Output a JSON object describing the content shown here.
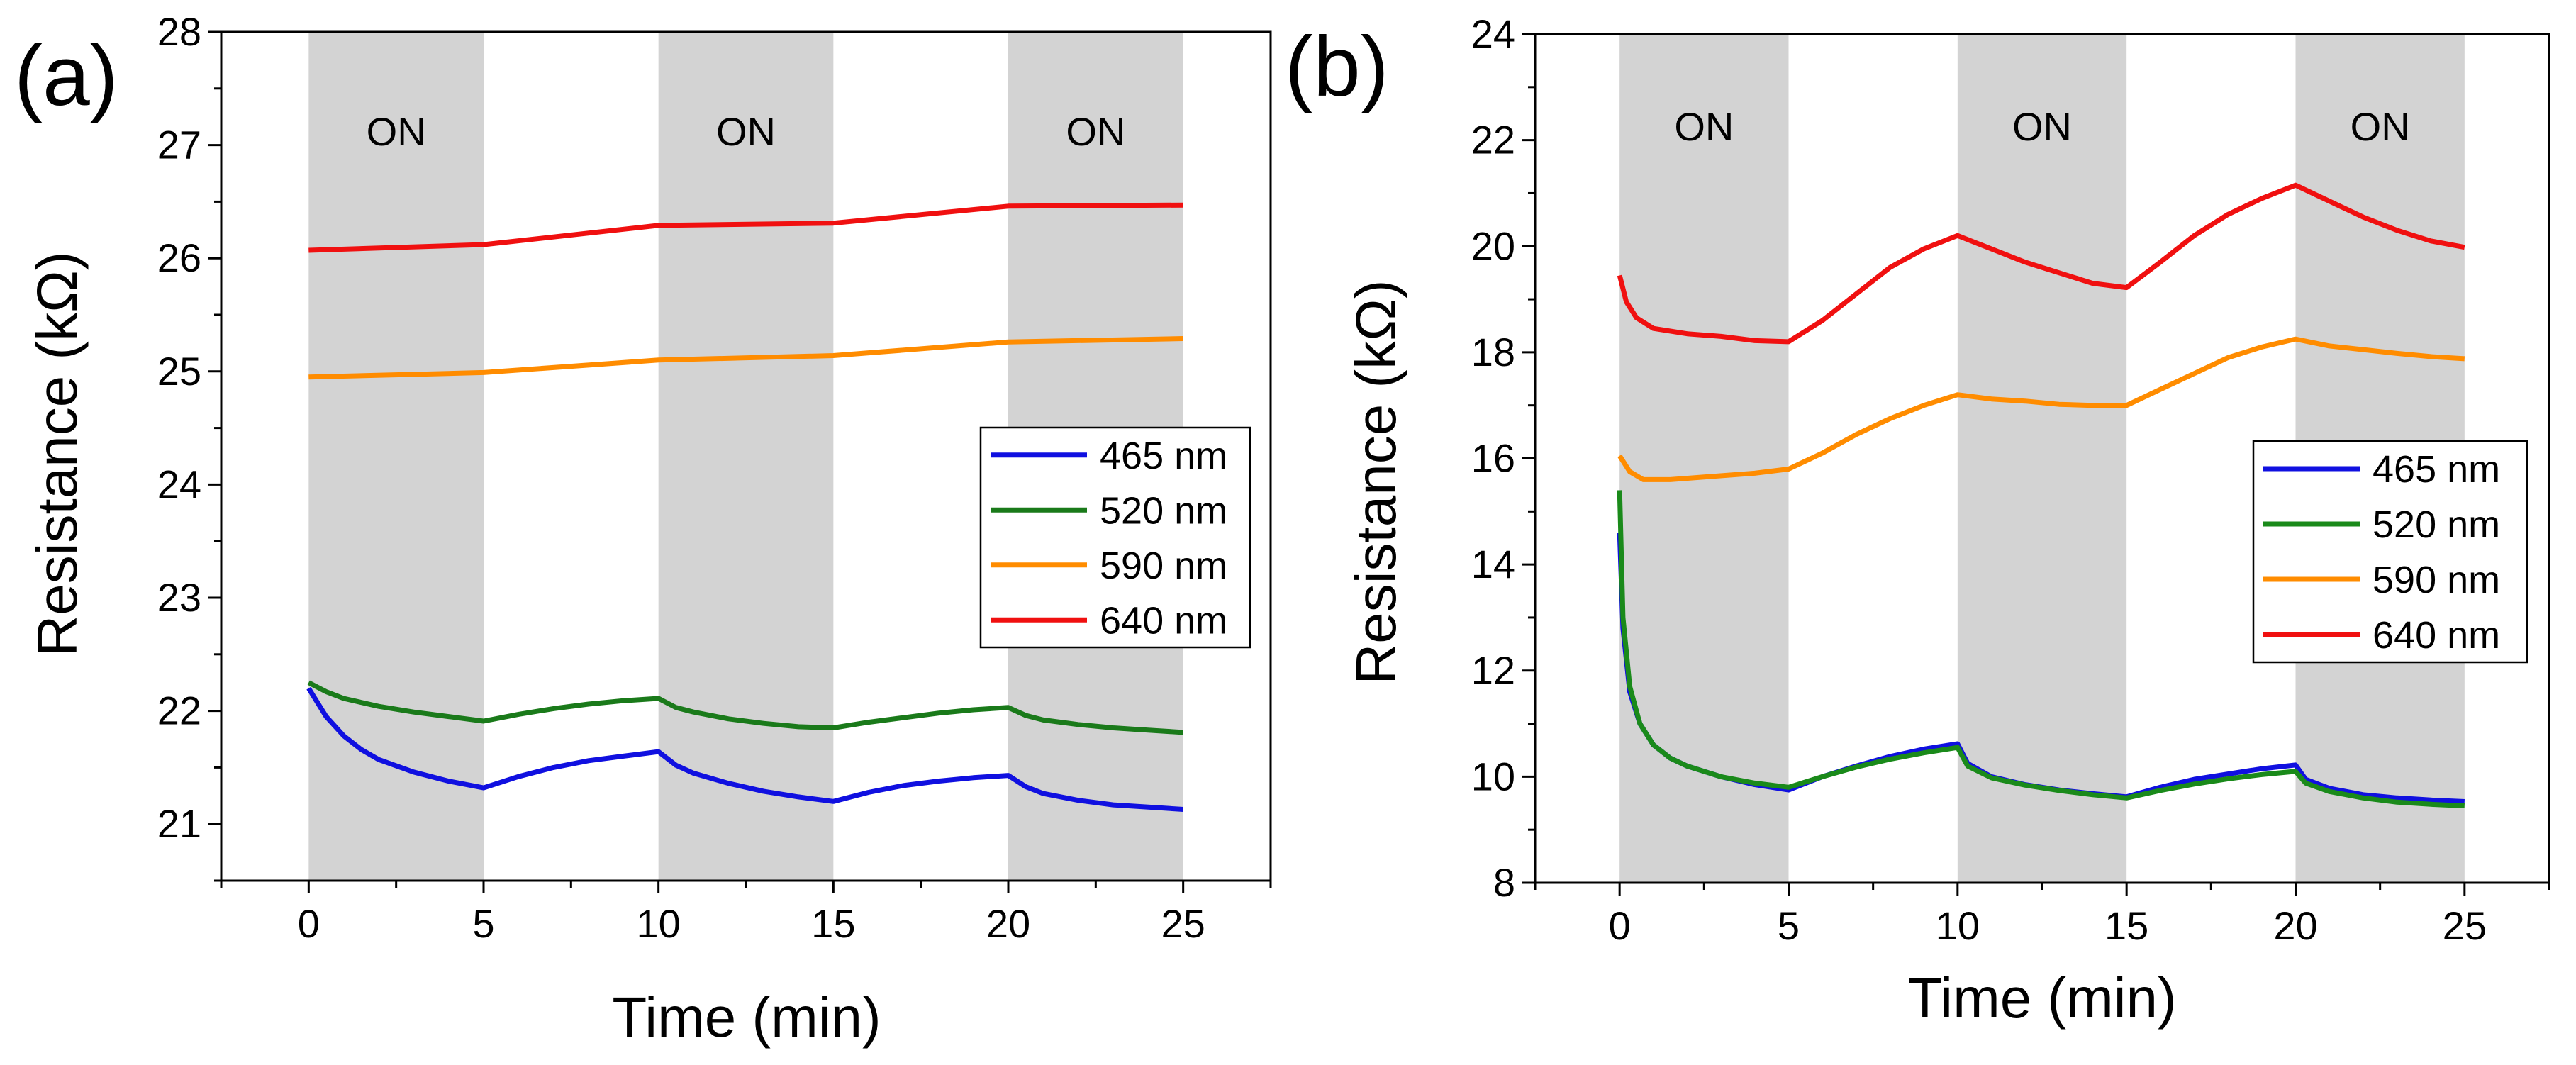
{
  "chart_data": [
    {
      "panel": "a",
      "panel_label": "(a)",
      "type": "line",
      "xlabel": "Time (min)",
      "ylabel": "Resistance (kΩ)",
      "xlim": [
        -2.5,
        27.5
      ],
      "ylim": [
        20.5,
        28
      ],
      "xticks": [
        0,
        5,
        10,
        15,
        20,
        25
      ],
      "yticks": [
        21,
        22,
        23,
        24,
        25,
        26,
        27,
        28
      ],
      "shaded_regions": [
        {
          "x0": 0,
          "x1": 5,
          "label": "ON"
        },
        {
          "x0": 10,
          "x1": 15,
          "label": "ON"
        },
        {
          "x0": 20,
          "x1": 25,
          "label": "ON"
        }
      ],
      "legend_position": "center-right",
      "series": [
        {
          "name": "465 nm",
          "color": "#1010e0",
          "x": [
            0,
            0.5,
            1,
            1.5,
            2,
            3,
            4,
            5,
            6,
            7,
            8,
            9,
            10,
            10.5,
            11,
            12,
            13,
            14,
            15,
            16,
            17,
            18,
            19,
            20,
            20.5,
            21,
            22,
            23,
            24,
            25
          ],
          "y": [
            22.2,
            21.95,
            21.78,
            21.66,
            21.57,
            21.46,
            21.38,
            21.32,
            21.42,
            21.5,
            21.56,
            21.6,
            21.64,
            21.52,
            21.45,
            21.36,
            21.29,
            21.24,
            21.2,
            21.28,
            21.34,
            21.38,
            21.41,
            21.43,
            21.33,
            21.27,
            21.21,
            21.17,
            21.15,
            21.13
          ]
        },
        {
          "name": "520 nm",
          "color": "#1a7a1a",
          "x": [
            0,
            0.5,
            1,
            2,
            3,
            4,
            5,
            6,
            7,
            8,
            9,
            10,
            10.5,
            11,
            12,
            13,
            14,
            15,
            16,
            17,
            18,
            19,
            20,
            20.5,
            21,
            22,
            23,
            24,
            25
          ],
          "y": [
            22.25,
            22.17,
            22.11,
            22.04,
            21.99,
            21.95,
            21.91,
            21.97,
            22.02,
            22.06,
            22.09,
            22.11,
            22.03,
            21.99,
            21.93,
            21.89,
            21.86,
            21.85,
            21.9,
            21.94,
            21.98,
            22.01,
            22.03,
            21.96,
            21.92,
            21.88,
            21.85,
            21.83,
            21.81
          ]
        },
        {
          "name": "590 nm",
          "color": "#ff8c00",
          "x": [
            0,
            5,
            10,
            15,
            20,
            25
          ],
          "y": [
            24.95,
            24.99,
            25.1,
            25.14,
            25.26,
            25.29
          ]
        },
        {
          "name": "640 nm",
          "color": "#f01010",
          "x": [
            0,
            5,
            10,
            15,
            20,
            25
          ],
          "y": [
            26.07,
            26.12,
            26.29,
            26.31,
            26.46,
            26.47
          ]
        }
      ]
    },
    {
      "panel": "b",
      "panel_label": "(b)",
      "type": "line",
      "xlabel": "Time (min)",
      "ylabel": "Resistance (kΩ)",
      "xlim": [
        -2.5,
        27.5
      ],
      "ylim": [
        8,
        24
      ],
      "xticks": [
        0,
        5,
        10,
        15,
        20,
        25
      ],
      "yticks": [
        8,
        10,
        12,
        14,
        16,
        18,
        20,
        22,
        24
      ],
      "shaded_regions": [
        {
          "x0": 0,
          "x1": 5,
          "label": "ON"
        },
        {
          "x0": 10,
          "x1": 15,
          "label": "ON"
        },
        {
          "x0": 20,
          "x1": 25,
          "label": "ON"
        }
      ],
      "legend_position": "center-right",
      "series": [
        {
          "name": "465 nm",
          "color": "#1010e0",
          "x": [
            0,
            0.1,
            0.3,
            0.6,
            1,
            1.5,
            2,
            3,
            4,
            5,
            6,
            7,
            8,
            9,
            10,
            10.3,
            11,
            12,
            13,
            14,
            15,
            16,
            17,
            18,
            19,
            20,
            20.3,
            21,
            22,
            23,
            24,
            25
          ],
          "y": [
            14.6,
            12.8,
            11.6,
            11.0,
            10.6,
            10.35,
            10.2,
            10.0,
            9.85,
            9.75,
            10.0,
            10.2,
            10.38,
            10.52,
            10.62,
            10.25,
            10.0,
            9.85,
            9.75,
            9.68,
            9.62,
            9.8,
            9.95,
            10.05,
            10.15,
            10.22,
            9.95,
            9.78,
            9.66,
            9.6,
            9.56,
            9.53
          ]
        },
        {
          "name": "520 nm",
          "color": "#1a8a1a",
          "x": [
            0,
            0.1,
            0.3,
            0.6,
            1,
            1.5,
            2,
            3,
            4,
            5,
            6,
            7,
            8,
            9,
            10,
            10.3,
            11,
            12,
            13,
            14,
            15,
            16,
            17,
            18,
            19,
            20,
            20.3,
            21,
            22,
            23,
            24,
            25
          ],
          "y": [
            15.4,
            13.0,
            11.7,
            11.0,
            10.6,
            10.35,
            10.2,
            10.0,
            9.88,
            9.8,
            10.0,
            10.18,
            10.33,
            10.45,
            10.55,
            10.2,
            9.98,
            9.84,
            9.74,
            9.66,
            9.6,
            9.74,
            9.86,
            9.96,
            10.04,
            10.1,
            9.88,
            9.72,
            9.6,
            9.52,
            9.48,
            9.45
          ]
        },
        {
          "name": "590 nm",
          "color": "#ff8c00",
          "x": [
            0,
            0.3,
            0.7,
            1.5,
            2.5,
            4,
            5,
            6,
            7,
            8,
            9,
            10,
            11,
            12,
            13,
            14,
            15,
            16,
            17,
            18,
            19,
            20,
            21,
            22,
            23,
            24,
            25
          ],
          "y": [
            16.05,
            15.75,
            15.6,
            15.6,
            15.65,
            15.72,
            15.8,
            16.1,
            16.45,
            16.75,
            17.0,
            17.2,
            17.12,
            17.08,
            17.02,
            17.0,
            17.0,
            17.3,
            17.6,
            17.9,
            18.1,
            18.25,
            18.12,
            18.05,
            17.98,
            17.92,
            17.88
          ]
        },
        {
          "name": "640 nm",
          "color": "#f01010",
          "x": [
            0,
            0.2,
            0.5,
            1,
            2,
            3,
            4,
            5,
            6,
            7,
            8,
            9,
            10,
            11,
            12,
            13,
            14,
            15,
            16,
            17,
            18,
            19,
            20,
            21,
            22,
            23,
            24,
            25
          ],
          "y": [
            19.45,
            18.95,
            18.65,
            18.45,
            18.35,
            18.3,
            18.22,
            18.2,
            18.6,
            19.1,
            19.6,
            19.95,
            20.2,
            19.95,
            19.7,
            19.5,
            19.3,
            19.22,
            19.7,
            20.2,
            20.6,
            20.9,
            21.15,
            20.85,
            20.55,
            20.3,
            20.1,
            19.98
          ]
        }
      ]
    }
  ]
}
